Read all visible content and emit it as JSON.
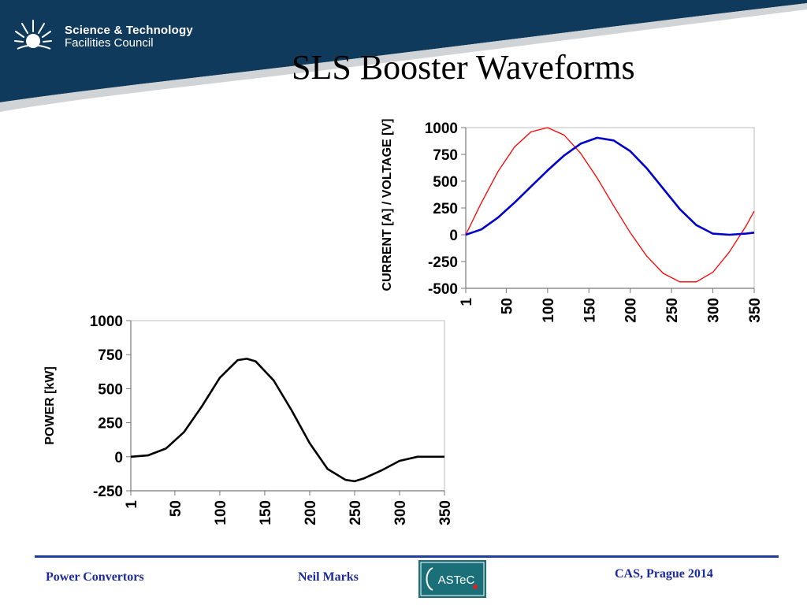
{
  "branding": {
    "org_line1": "Science & Technology",
    "org_line2": "Facilities Council",
    "sun_icon": "stfc-sun-logo-icon",
    "astec_logo_text": "ASTeC",
    "colors": {
      "header_navy": "#0f3a5c",
      "footer_text": "#1c2a9a",
      "footer_line": "#1f3f9a"
    }
  },
  "slide": {
    "title": "SLS Booster Waveforms"
  },
  "footer": {
    "left": "Power Convertors",
    "center": "Neil Marks",
    "right": "CAS, Prague 2014"
  },
  "chart_data": [
    {
      "type": "line",
      "ylabel": "CURRENT [A] / VOLTAGE [V]",
      "xlabel": "",
      "x_ticks": [
        1,
        50,
        100,
        150,
        200,
        250,
        300,
        350
      ],
      "y_ticks": [
        1000,
        750,
        500,
        250,
        0,
        -250,
        -500
      ],
      "xlim": [
        1,
        350
      ],
      "ylim": [
        -500,
        1000
      ],
      "grid": false,
      "x": [
        1,
        20,
        40,
        60,
        80,
        100,
        120,
        140,
        160,
        180,
        200,
        220,
        240,
        260,
        280,
        300,
        320,
        340,
        350
      ],
      "series": [
        {
          "color": "#ff0000",
          "values": [
            0,
            300,
            590,
            820,
            960,
            1000,
            930,
            760,
            530,
            270,
            20,
            -200,
            -360,
            -440,
            -440,
            -350,
            -160,
            80,
            220
          ]
        },
        {
          "color": "#0000cc",
          "values": [
            0,
            50,
            160,
            300,
            450,
            600,
            740,
            850,
            905,
            880,
            780,
            620,
            430,
            240,
            90,
            10,
            0,
            10,
            20
          ]
        }
      ]
    },
    {
      "type": "line",
      "ylabel": "POWER [kW]",
      "xlabel": "",
      "x_ticks": [
        1,
        50,
        100,
        150,
        200,
        250,
        300,
        350
      ],
      "y_ticks": [
        1000,
        750,
        500,
        250,
        0,
        -250
      ],
      "xlim": [
        1,
        350
      ],
      "ylim": [
        -250,
        1000
      ],
      "grid": false,
      "x": [
        1,
        20,
        40,
        60,
        80,
        100,
        120,
        130,
        140,
        160,
        180,
        200,
        220,
        240,
        250,
        260,
        280,
        300,
        320,
        340,
        350
      ],
      "series": [
        {
          "color": "#000000",
          "values": [
            0,
            10,
            60,
            180,
            370,
            580,
            710,
            720,
            700,
            560,
            340,
            100,
            -90,
            -170,
            -180,
            -160,
            -100,
            -30,
            0,
            0,
            0
          ]
        }
      ]
    }
  ]
}
